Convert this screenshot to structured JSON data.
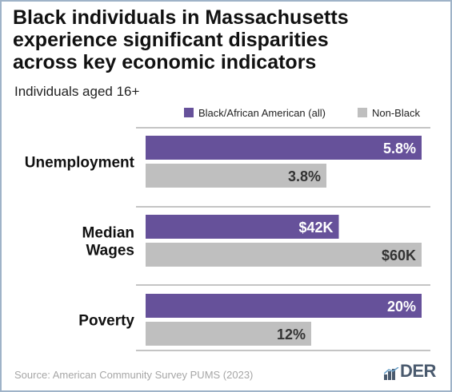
{
  "header": {
    "title_lines": [
      "Black individuals in Massachusetts",
      "experience significant disparities",
      "across key economic indicators"
    ],
    "subtitle": "Individuals aged 16+"
  },
  "colors": {
    "black": "#66519a",
    "nonblack": "#bfbfbf",
    "separator": "#b0b0b0",
    "label_on_bar": "#ffffff",
    "label_dark": "#333333"
  },
  "chart_data": {
    "type": "bar",
    "orientation": "horizontal",
    "categories": [
      {
        "label_lines": [
          "Unemployment"
        ]
      },
      {
        "label_lines": [
          "Median",
          "Wages"
        ]
      },
      {
        "label_lines": [
          "Poverty"
        ]
      }
    ],
    "series": [
      {
        "name": "Black/African American (all)",
        "values": [
          5.8,
          42,
          20
        ],
        "labels": [
          "5.8%",
          "$42K",
          "20%"
        ]
      },
      {
        "name": "Non-Black",
        "values": [
          3.8,
          60,
          12
        ],
        "labels": [
          "3.8%",
          "$60K",
          "12%"
        ]
      }
    ],
    "category_max": [
      5.8,
      60,
      20
    ],
    "legend_position": "top-right",
    "grid": false
  },
  "footer": {
    "source": "Source: American Community Survey PUMS (2023)",
    "logo_text": "DER"
  }
}
